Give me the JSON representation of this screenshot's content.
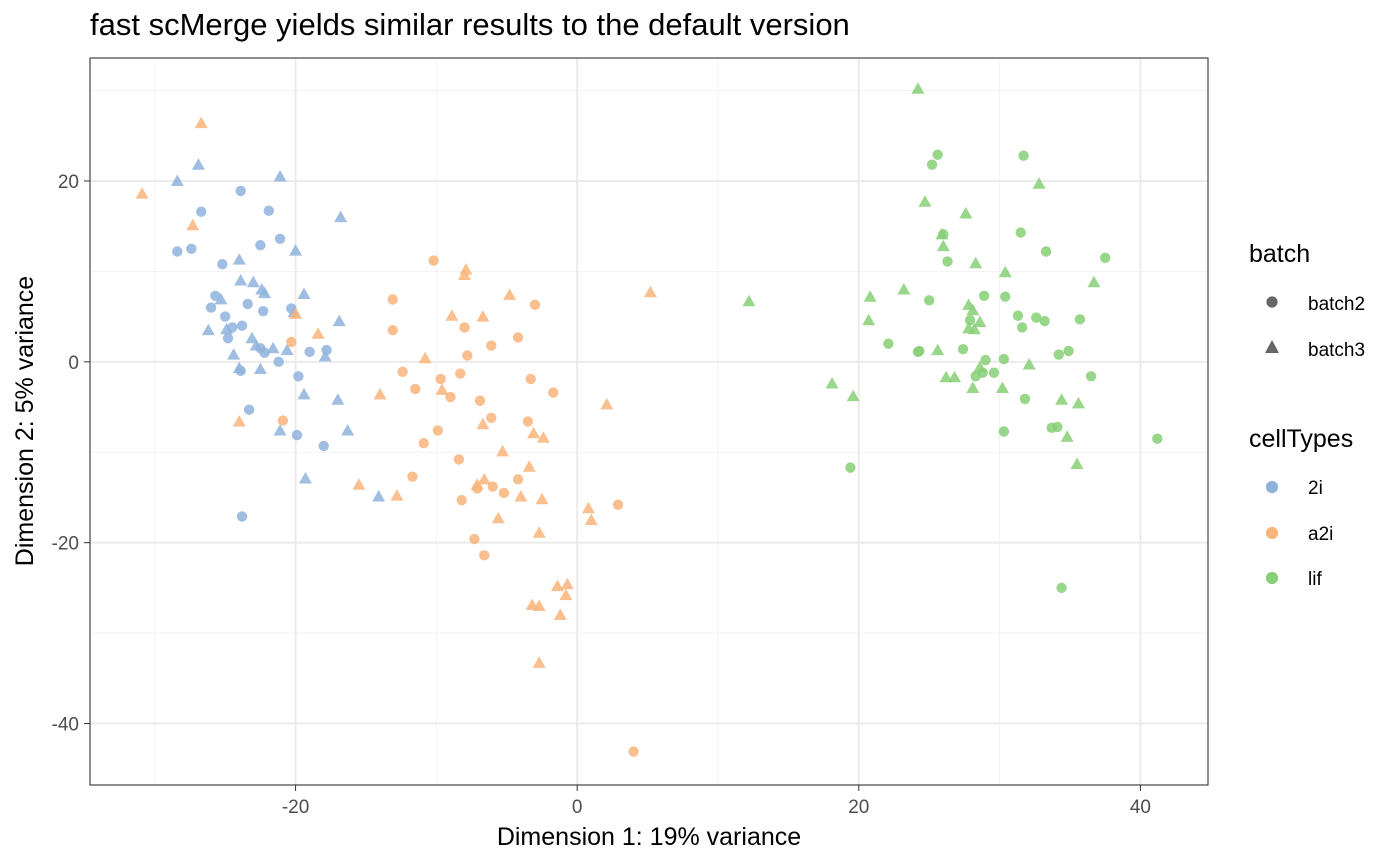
{
  "chart_data": {
    "type": "scatter",
    "title": "fast scMerge yields similar results to the default version",
    "xlabel": "Dimension 1: 19% variance",
    "ylabel": "Dimension 2: 5% variance",
    "xlim": [
      -34.6,
      44.8
    ],
    "ylim": [
      -46.8,
      33.6
    ],
    "x_ticks": [
      -20,
      0,
      20,
      40
    ],
    "x_tick_labels": [
      "-20",
      "0",
      "20",
      "40"
    ],
    "y_ticks": [
      -40,
      -20,
      0,
      20
    ],
    "y_tick_labels": [
      "-40",
      "-20",
      "0",
      "20"
    ],
    "grid": true,
    "legend_placement": "right",
    "legends": {
      "shape": {
        "title": "batch",
        "entries": [
          {
            "label": "batch2",
            "shape": "circle"
          },
          {
            "label": "batch3",
            "shape": "triangle"
          }
        ]
      },
      "color": {
        "title": "cellTypes",
        "entries": [
          {
            "label": "2i",
            "color": "#8fb3dc"
          },
          {
            "label": "a2i",
            "color": "#f9b47a"
          },
          {
            "label": "lif",
            "color": "#86cf76"
          }
        ]
      }
    },
    "series": [
      {
        "name": "2i",
        "color": "#8fb3dc",
        "batch2": [
          [
            -23.9,
            18.9
          ],
          [
            -26.7,
            16.6
          ],
          [
            -21.9,
            16.7
          ],
          [
            -21.1,
            13.6
          ],
          [
            -27.4,
            12.5
          ],
          [
            -28.4,
            12.2
          ],
          [
            -22.5,
            12.9
          ],
          [
            -25.2,
            10.8
          ],
          [
            -25.7,
            7.3
          ],
          [
            -26.0,
            6.0
          ],
          [
            -23.4,
            6.4
          ],
          [
            -25.0,
            5.0
          ],
          [
            -22.3,
            5.6
          ],
          [
            -20.3,
            5.9
          ],
          [
            -23.8,
            4.0
          ],
          [
            -24.5,
            3.8
          ],
          [
            -24.8,
            2.6
          ],
          [
            -22.5,
            1.5
          ],
          [
            -22.2,
            1.0
          ],
          [
            -19.0,
            1.1
          ],
          [
            -17.8,
            1.3
          ],
          [
            -21.2,
            0.0
          ],
          [
            -23.9,
            -1.0
          ],
          [
            -19.8,
            -1.6
          ],
          [
            -23.3,
            -5.3
          ],
          [
            -19.9,
            -8.1
          ],
          [
            -18.0,
            -9.3
          ],
          [
            -23.8,
            -17.1
          ]
        ],
        "batch3": [
          [
            -26.9,
            21.8
          ],
          [
            -28.4,
            20.0
          ],
          [
            -21.1,
            20.5
          ],
          [
            -16.8,
            16.0
          ],
          [
            -20.0,
            12.3
          ],
          [
            -24.0,
            11.3
          ],
          [
            -23.0,
            8.8
          ],
          [
            -23.9,
            9.0
          ],
          [
            -22.4,
            8.0
          ],
          [
            -22.2,
            7.6
          ],
          [
            -19.4,
            7.5
          ],
          [
            -25.3,
            6.9
          ],
          [
            -20.1,
            5.5
          ],
          [
            -24.9,
            3.6
          ],
          [
            -26.2,
            3.5
          ],
          [
            -16.9,
            4.5
          ],
          [
            -23.1,
            2.6
          ],
          [
            -22.8,
            1.8
          ],
          [
            -21.6,
            1.5
          ],
          [
            -20.6,
            1.3
          ],
          [
            -24.4,
            0.8
          ],
          [
            -17.9,
            0.6
          ],
          [
            -24.0,
            -0.7
          ],
          [
            -22.5,
            -0.8
          ],
          [
            -19.4,
            -3.6
          ],
          [
            -17.0,
            -4.2
          ],
          [
            -21.1,
            -7.6
          ],
          [
            -16.3,
            -7.6
          ],
          [
            -19.3,
            -12.9
          ],
          [
            -14.1,
            -14.9
          ]
        ]
      },
      {
        "name": "a2i",
        "color": "#f9b47a",
        "batch2": [
          [
            -10.2,
            11.2
          ],
          [
            -13.1,
            6.9
          ],
          [
            -3.0,
            6.3
          ],
          [
            -13.1,
            3.5
          ],
          [
            -8.0,
            3.8
          ],
          [
            -4.2,
            2.7
          ],
          [
            -6.1,
            1.8
          ],
          [
            -7.8,
            0.7
          ],
          [
            -12.4,
            -1.1
          ],
          [
            -8.3,
            -1.3
          ],
          [
            -9.7,
            -1.9
          ],
          [
            -3.3,
            -1.9
          ],
          [
            -11.5,
            -3.0
          ],
          [
            -9.0,
            -3.9
          ],
          [
            -6.9,
            -4.3
          ],
          [
            -1.7,
            -3.4
          ],
          [
            -3.5,
            -6.6
          ],
          [
            -6.1,
            -6.2
          ],
          [
            -9.9,
            -7.6
          ],
          [
            -10.9,
            -9.0
          ],
          [
            -8.4,
            -10.8
          ],
          [
            -4.2,
            -13.0
          ],
          [
            -6.0,
            -13.8
          ],
          [
            -5.2,
            -14.5
          ],
          [
            -7.1,
            -14.0
          ],
          [
            -8.2,
            -15.3
          ],
          [
            -11.7,
            -12.7
          ],
          [
            2.9,
            -15.8
          ],
          [
            -7.3,
            -19.6
          ],
          [
            -6.6,
            -21.4
          ],
          [
            -20.3,
            2.2
          ],
          [
            -20.9,
            -6.5
          ],
          [
            4.0,
            -43.1
          ]
        ],
        "batch3": [
          [
            -26.7,
            26.4
          ],
          [
            -30.9,
            18.6
          ],
          [
            -27.3,
            15.1
          ],
          [
            -7.9,
            10.2
          ],
          [
            -8.0,
            9.6
          ],
          [
            5.2,
            7.7
          ],
          [
            -4.8,
            7.4
          ],
          [
            -8.9,
            5.1
          ],
          [
            -6.7,
            5.0
          ],
          [
            -20.0,
            5.3
          ],
          [
            -18.4,
            3.1
          ],
          [
            -10.8,
            0.4
          ],
          [
            -9.6,
            -3.1
          ],
          [
            -14.0,
            -3.6
          ],
          [
            2.1,
            -4.7
          ],
          [
            -6.7,
            -6.9
          ],
          [
            -3.1,
            -7.9
          ],
          [
            -2.4,
            -8.4
          ],
          [
            -5.3,
            -9.9
          ],
          [
            -3.4,
            -11.6
          ],
          [
            -6.6,
            -13.0
          ],
          [
            -7.1,
            -13.6
          ],
          [
            -4.0,
            -14.9
          ],
          [
            -15.5,
            -13.6
          ],
          [
            -12.8,
            -14.8
          ],
          [
            -5.6,
            -17.3
          ],
          [
            -2.5,
            -15.2
          ],
          [
            0.8,
            -16.2
          ],
          [
            1.0,
            -17.5
          ],
          [
            -2.7,
            -18.9
          ],
          [
            -1.4,
            -24.8
          ],
          [
            -0.7,
            -24.6
          ],
          [
            -0.8,
            -25.8
          ],
          [
            -3.2,
            -26.9
          ],
          [
            -2.7,
            -27.0
          ],
          [
            -1.2,
            -28.0
          ],
          [
            -2.7,
            -33.3
          ],
          [
            -24.0,
            -6.6
          ]
        ]
      },
      {
        "name": "lif",
        "color": "#86cf76",
        "batch2": [
          [
            25.6,
            22.9
          ],
          [
            25.2,
            21.8
          ],
          [
            31.7,
            22.8
          ],
          [
            26.0,
            14.1
          ],
          [
            31.5,
            14.3
          ],
          [
            33.3,
            12.2
          ],
          [
            37.5,
            11.5
          ],
          [
            26.3,
            11.1
          ],
          [
            28.9,
            7.3
          ],
          [
            30.4,
            7.2
          ],
          [
            25.0,
            6.8
          ],
          [
            27.9,
            4.6
          ],
          [
            31.3,
            5.1
          ],
          [
            32.6,
            4.9
          ],
          [
            33.2,
            4.5
          ],
          [
            35.7,
            4.7
          ],
          [
            31.6,
            3.8
          ],
          [
            22.1,
            2.0
          ],
          [
            24.3,
            1.2
          ],
          [
            24.2,
            1.1
          ],
          [
            27.4,
            1.4
          ],
          [
            34.9,
            1.2
          ],
          [
            34.2,
            0.8
          ],
          [
            30.3,
            0.3
          ],
          [
            29.0,
            0.2
          ],
          [
            28.8,
            -1.2
          ],
          [
            28.3,
            -1.6
          ],
          [
            29.6,
            -1.2
          ],
          [
            36.5,
            -1.6
          ],
          [
            31.8,
            -4.1
          ],
          [
            33.7,
            -7.3
          ],
          [
            34.1,
            -7.2
          ],
          [
            30.3,
            -7.7
          ],
          [
            19.4,
            -11.7
          ],
          [
            41.2,
            -8.5
          ],
          [
            34.4,
            -25.0
          ]
        ],
        "batch3": [
          [
            24.2,
            30.2
          ],
          [
            32.8,
            19.7
          ],
          [
            24.7,
            17.7
          ],
          [
            27.6,
            16.4
          ],
          [
            26.0,
            12.8
          ],
          [
            25.9,
            14.1
          ],
          [
            30.4,
            9.9
          ],
          [
            36.7,
            8.8
          ],
          [
            28.3,
            10.9
          ],
          [
            23.2,
            8.0
          ],
          [
            20.8,
            7.2
          ],
          [
            12.2,
            6.7
          ],
          [
            27.8,
            6.3
          ],
          [
            28.1,
            5.7
          ],
          [
            28.6,
            4.4
          ],
          [
            20.7,
            4.6
          ],
          [
            27.8,
            3.7
          ],
          [
            28.2,
            3.6
          ],
          [
            25.6,
            1.3
          ],
          [
            28.6,
            -0.6
          ],
          [
            32.1,
            -0.3
          ],
          [
            26.2,
            -1.7
          ],
          [
            26.8,
            -1.7
          ],
          [
            18.1,
            -2.4
          ],
          [
            28.1,
            -2.9
          ],
          [
            30.2,
            -2.9
          ],
          [
            19.6,
            -3.8
          ],
          [
            34.4,
            -4.2
          ],
          [
            35.6,
            -4.6
          ],
          [
            34.8,
            -8.3
          ],
          [
            35.5,
            -11.3
          ]
        ]
      }
    ]
  }
}
